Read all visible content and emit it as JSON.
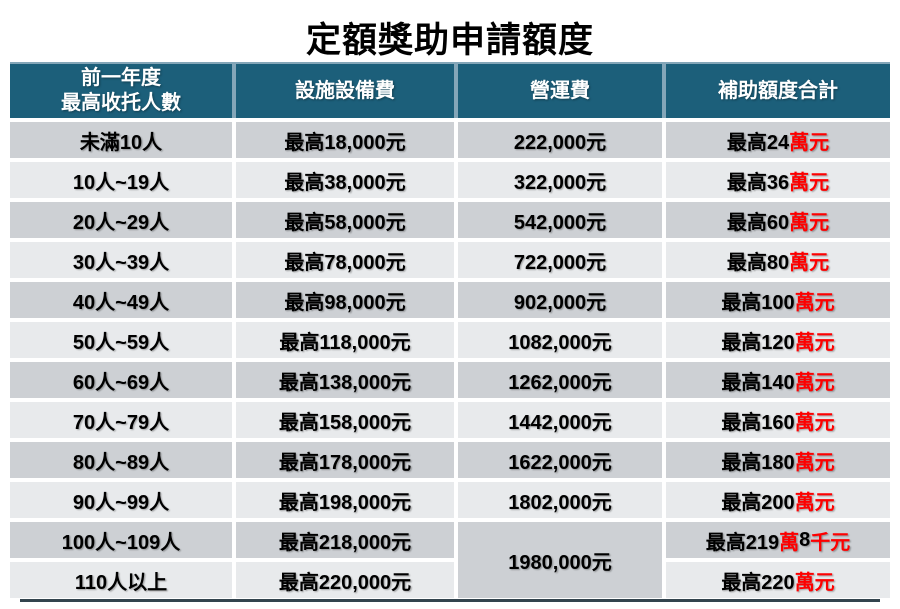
{
  "title": "定額獎助申請額度",
  "colors": {
    "header_bg": "#1c5f7a",
    "header_gap": "#84a6b8",
    "row_dark": "#cdd0d4",
    "row_light": "#e8eaec",
    "highlight_red": "#fe0000",
    "bottom_border": "#33444e"
  },
  "table": {
    "headers": {
      "col1_line1": "前一年度",
      "col1_line2": "最高收托人數",
      "col2": "設施設備費",
      "col3": "營運費",
      "col4": "補助額度合計"
    },
    "rows": [
      {
        "capacity": "未滿10人",
        "facility": "最高18,000元",
        "operating": "222,000元",
        "subsidy": {
          "b1": "最高24",
          "r1": "萬元",
          "b2": "",
          "r2": ""
        }
      },
      {
        "capacity": "10人~19人",
        "facility": "最高38,000元",
        "operating": "322,000元",
        "subsidy": {
          "b1": "最高36",
          "r1": "萬元",
          "b2": "",
          "r2": ""
        }
      },
      {
        "capacity": "20人~29人",
        "facility": "最高58,000元",
        "operating": "542,000元",
        "subsidy": {
          "b1": "最高60",
          "r1": "萬元",
          "b2": "",
          "r2": ""
        }
      },
      {
        "capacity": "30人~39人",
        "facility": "最高78,000元",
        "operating": "722,000元",
        "subsidy": {
          "b1": "最高80",
          "r1": "萬元",
          "b2": "",
          "r2": ""
        }
      },
      {
        "capacity": "40人~49人",
        "facility": "最高98,000元",
        "operating": "902,000元",
        "subsidy": {
          "b1": "最高100",
          "r1": "萬元",
          "b2": "",
          "r2": ""
        }
      },
      {
        "capacity": "50人~59人",
        "facility": "最高118,000元",
        "operating": "1082,000元",
        "subsidy": {
          "b1": "最高120",
          "r1": "萬元",
          "b2": "",
          "r2": ""
        }
      },
      {
        "capacity": "60人~69人",
        "facility": "最高138,000元",
        "operating": "1262,000元",
        "subsidy": {
          "b1": "最高140",
          "r1": "萬元",
          "b2": "",
          "r2": ""
        }
      },
      {
        "capacity": "70人~79人",
        "facility": "最高158,000元",
        "operating": "1442,000元",
        "subsidy": {
          "b1": "最高160",
          "r1": "萬元",
          "b2": "",
          "r2": ""
        }
      },
      {
        "capacity": "80人~89人",
        "facility": "最高178,000元",
        "operating": "1622,000元",
        "subsidy": {
          "b1": "最高180",
          "r1": "萬元",
          "b2": "",
          "r2": ""
        }
      },
      {
        "capacity": "90人~99人",
        "facility": "最高198,000元",
        "operating": "1802,000元",
        "subsidy": {
          "b1": "最高200",
          "r1": "萬元",
          "b2": "",
          "r2": ""
        }
      },
      {
        "capacity": "100人~109人",
        "facility": "最高218,000元",
        "operating": "1980,000元",
        "subsidy": {
          "b1": "最高219",
          "r1": "萬",
          "b2": "8",
          "r2": "千元"
        }
      },
      {
        "capacity": "110人以上",
        "facility": "最高220,000元",
        "operating": "",
        "subsidy": {
          "b1": "最高220",
          "r1": "萬元",
          "b2": "",
          "r2": ""
        }
      }
    ]
  }
}
